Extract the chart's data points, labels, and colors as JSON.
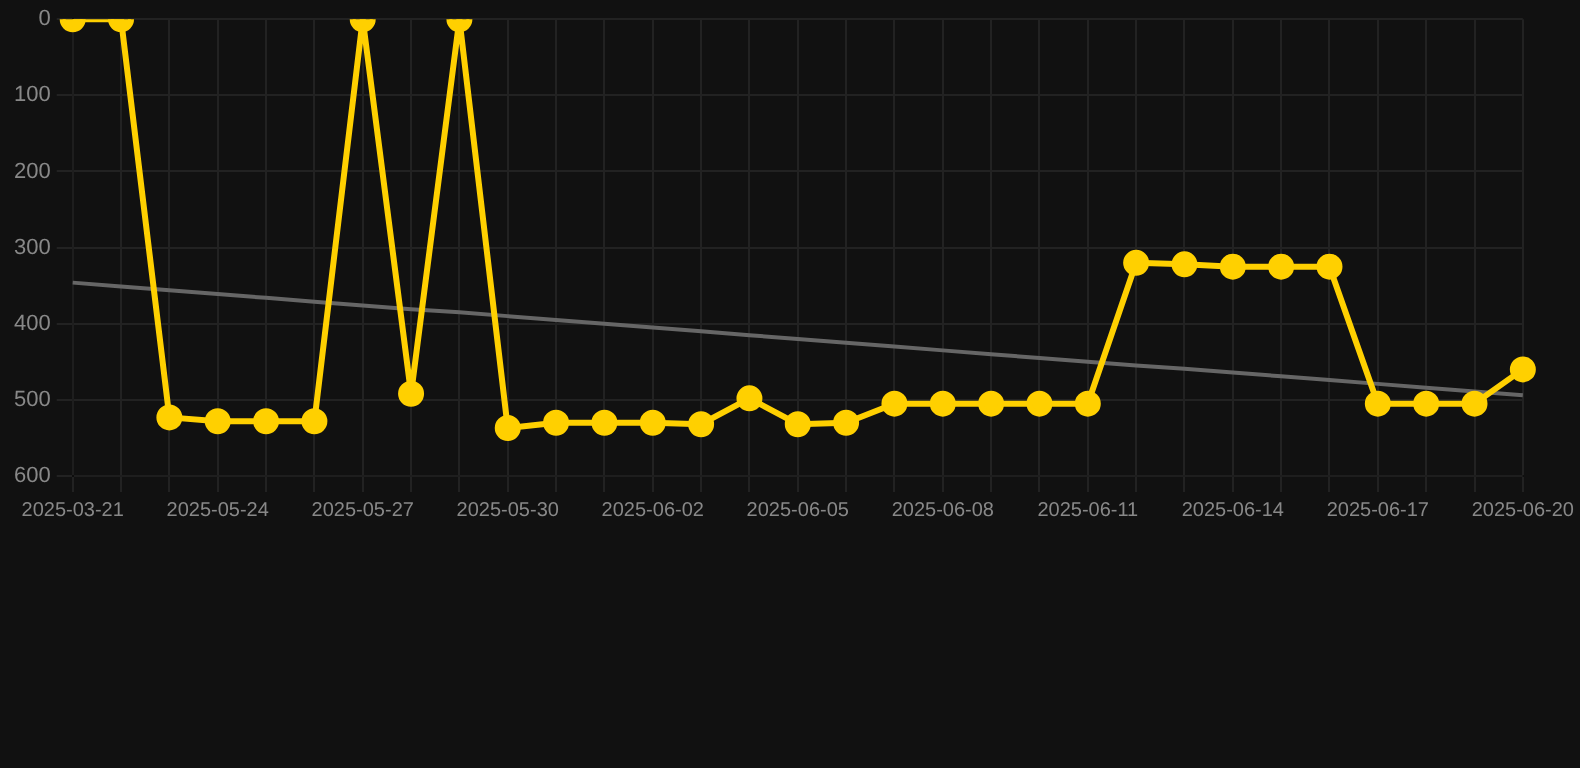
{
  "chart_data": {
    "type": "line",
    "categories": [
      "2025-03-21",
      null,
      null,
      "2025-05-24",
      null,
      null,
      "2025-05-27",
      null,
      null,
      "2025-05-30",
      null,
      null,
      "2025-06-02",
      null,
      null,
      "2025-06-05",
      null,
      null,
      "2025-06-08",
      null,
      null,
      "2025-06-11",
      null,
      null,
      "2025-06-14",
      null,
      null,
      "2025-06-17",
      null,
      null,
      "2025-06-20"
    ],
    "series": [
      {
        "color": "#ffd000",
        "marker": "circle",
        "values": [
          0,
          0,
          523,
          528,
          528,
          528,
          0,
          492,
          0,
          537,
          530,
          530,
          530,
          532,
          498,
          532,
          530,
          505,
          505,
          505,
          505,
          505,
          320,
          322,
          325,
          325,
          325,
          505,
          505,
          505,
          460
        ]
      },
      {
        "type": "line",
        "color": "#666666",
        "marker": "none",
        "values": [
          346,
          351,
          356,
          361,
          366,
          371,
          376,
          381,
          385,
          390,
          395,
          400,
          405,
          410,
          415,
          420,
          425,
          430,
          435,
          440,
          445,
          450,
          455,
          459,
          464,
          469,
          474,
          479,
          484,
          489,
          494
        ]
      }
    ],
    "ylim": [
      600,
      0
    ],
    "yticks": [
      0,
      100,
      200,
      300,
      400,
      500,
      600
    ],
    "grid": true
  }
}
